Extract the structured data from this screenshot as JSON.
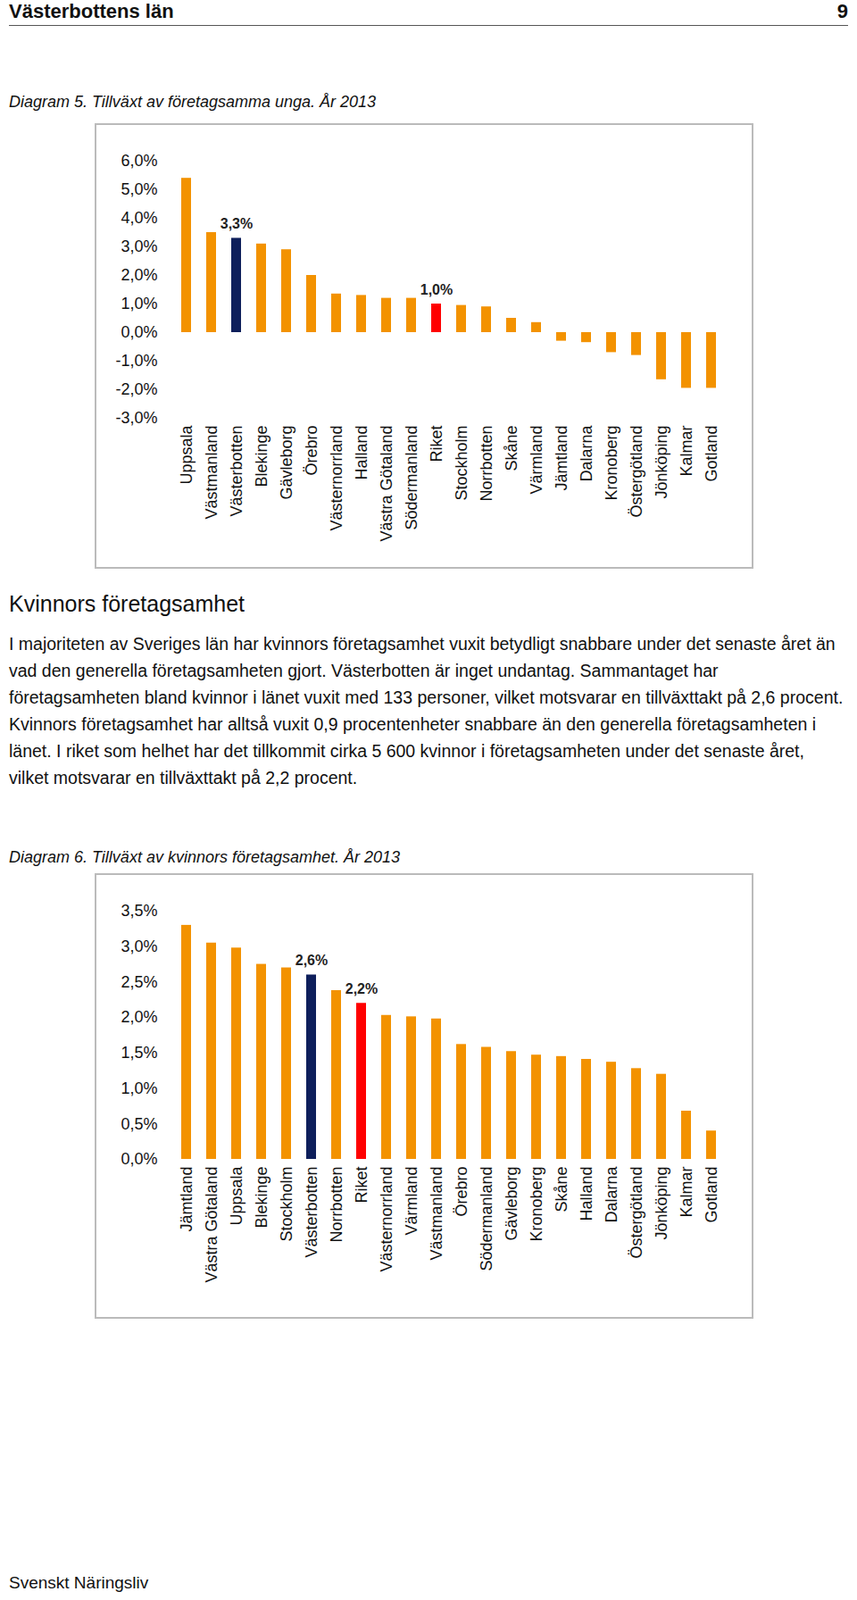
{
  "header": {
    "title": "Västerbottens län",
    "page": "9"
  },
  "chart_data": [
    {
      "type": "bar",
      "title": "Diagram 5. Tillväxt av företagsamma unga. År 2013",
      "categories": [
        "Uppsala",
        "Västmanland",
        "Västerbotten",
        "Blekinge",
        "Gävleborg",
        "Örebro",
        "Västernorrland",
        "Halland",
        "Västra Götaland",
        "Södermanland",
        "Riket",
        "Stockholm",
        "Norrbotten",
        "Skåne",
        "Värmland",
        "Jämtland",
        "Dalarna",
        "Kronoberg",
        "Östergötland",
        "Jönköping",
        "Kalmar",
        "Gotland"
      ],
      "values": [
        5.4,
        3.5,
        3.3,
        3.1,
        2.9,
        2.0,
        1.35,
        1.3,
        1.2,
        1.2,
        1.0,
        0.95,
        0.9,
        0.5,
        0.35,
        -0.3,
        -0.35,
        -0.7,
        -0.8,
        -1.65,
        -1.95,
        -1.95
      ],
      "value_labels": [
        null,
        null,
        "3,3%",
        null,
        null,
        null,
        null,
        null,
        null,
        null,
        "1,0%",
        null,
        null,
        null,
        null,
        null,
        null,
        null,
        null,
        null,
        null,
        null
      ],
      "data_labels": true,
      "colors": [
        "#f39200",
        "#f39200",
        "#0e1f5b",
        "#f39200",
        "#f39200",
        "#f39200",
        "#f39200",
        "#f39200",
        "#f39200",
        "#f39200",
        "#ff0000",
        "#f39200",
        "#f39200",
        "#f39200",
        "#f39200",
        "#f39200",
        "#f39200",
        "#f39200",
        "#f39200",
        "#f39200",
        "#f39200",
        "#f39200"
      ],
      "ylim": [
        -3,
        6
      ],
      "yticks": [
        {
          "value": -3,
          "label": "-3,0%"
        },
        {
          "value": -2,
          "label": "-2,0%"
        },
        {
          "value": -1,
          "label": "-1,0%"
        },
        {
          "value": 0,
          "label": "0,0%"
        },
        {
          "value": 1,
          "label": "1,0%"
        },
        {
          "value": 2,
          "label": "2,0%"
        },
        {
          "value": 3,
          "label": "3,0%"
        },
        {
          "value": 4,
          "label": "4,0%"
        },
        {
          "value": 5,
          "label": "5,0%"
        },
        {
          "value": 6,
          "label": "6,0%"
        }
      ],
      "grid": false
    },
    {
      "type": "bar",
      "title": "Diagram 6. Tillväxt av kvinnors företagsamhet. År 2013",
      "categories": [
        "Jämtland",
        "Västra Götaland",
        "Uppsala",
        "Blekinge",
        "Stockholm",
        "Västerbotten",
        "Norrbotten",
        "Riket",
        "Västernorrland",
        "Värmland",
        "Västmanland",
        "Örebro",
        "Södermanland",
        "Gävleborg",
        "Kronoberg",
        "Skåne",
        "Halland",
        "Dalarna",
        "Östergötland",
        "Jönköping",
        "Kalmar",
        "Gotland"
      ],
      "values": [
        3.3,
        3.05,
        2.98,
        2.75,
        2.7,
        2.6,
        2.38,
        2.2,
        2.03,
        2.01,
        1.98,
        1.62,
        1.58,
        1.52,
        1.47,
        1.45,
        1.41,
        1.37,
        1.28,
        1.2,
        0.68,
        0.4
      ],
      "value_labels": [
        null,
        null,
        null,
        null,
        null,
        "2,6%",
        null,
        "2,2%",
        null,
        null,
        null,
        null,
        null,
        null,
        null,
        null,
        null,
        null,
        null,
        null,
        null,
        null
      ],
      "data_labels": true,
      "colors": [
        "#f39200",
        "#f39200",
        "#f39200",
        "#f39200",
        "#f39200",
        "#0e1f5b",
        "#f39200",
        "#ff0000",
        "#f39200",
        "#f39200",
        "#f39200",
        "#f39200",
        "#f39200",
        "#f39200",
        "#f39200",
        "#f39200",
        "#f39200",
        "#f39200",
        "#f39200",
        "#f39200",
        "#f39200",
        "#f39200"
      ],
      "ylim": [
        0,
        3.5
      ],
      "yticks": [
        {
          "value": 0,
          "label": "0,0%"
        },
        {
          "value": 0.5,
          "label": "0,5%"
        },
        {
          "value": 1,
          "label": "1,0%"
        },
        {
          "value": 1.5,
          "label": "1,5%"
        },
        {
          "value": 2,
          "label": "2,0%"
        },
        {
          "value": 2.5,
          "label": "2,5%"
        },
        {
          "value": 3,
          "label": "3,0%"
        },
        {
          "value": 3.5,
          "label": "3,5%"
        }
      ],
      "grid": false
    }
  ],
  "section": {
    "heading": "Kvinnors företagsamhet",
    "paragraph": "I majoriteten av Sveriges län har kvinnors företagsamhet vuxit betydligt snabbare under det senaste året än vad den generella företagsamheten gjort. Västerbotten är inget undantag. Sammantaget har företagsamheten bland kvinnor i länet vuxit med 133 personer, vilket motsvarar en tillväxttakt på 2,6 procent. Kvinnors företagsamhet har alltså vuxit 0,9 procentenheter snabbare än den generella företagsamheten i länet. I riket som helhet har det tillkommit cirka 5 600 kvinnor i företagsamheten under det senaste året, vilket motsvarar en tillväxttakt på 2,2 procent."
  },
  "footer": "Svenskt Näringsliv"
}
